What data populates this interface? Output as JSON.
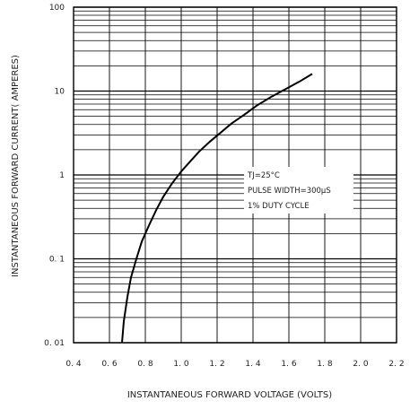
{
  "chart_data": {
    "type": "line",
    "xlabel": "INSTANTANEOUS FORWARD VOLTAGE (VOLTS)",
    "ylabel": "INSTANTANEOUS FORWARD CURRENT( AMPERES)",
    "xlim": [
      0.4,
      2.2
    ],
    "ylim": [
      0.01,
      100
    ],
    "yscale": "log",
    "grid": true,
    "x_ticks": [
      "0. 4",
      "0. 6",
      "0. 8",
      "1. 0",
      "1. 2",
      "1. 4",
      "1. 6",
      "1. 8",
      "2. 0",
      "2. 2"
    ],
    "x_tick_values": [
      0.4,
      0.6,
      0.8,
      1.0,
      1.2,
      1.4,
      1.6,
      1.8,
      2.0,
      2.2
    ],
    "y_ticks": [
      "0. 01",
      "0. 1",
      "1",
      "10",
      "100"
    ],
    "y_tick_values": [
      0.01,
      0.1,
      1,
      10,
      100
    ],
    "series": [
      {
        "x": [
          0.67,
          0.68,
          0.7,
          0.72,
          0.75,
          0.78,
          0.82,
          0.86,
          0.9,
          0.95,
          1.0,
          1.05,
          1.1,
          1.16,
          1.22,
          1.28,
          1.35,
          1.42,
          1.5,
          1.58,
          1.66,
          1.73
        ],
        "y": [
          0.01,
          0.018,
          0.035,
          0.06,
          0.1,
          0.16,
          0.25,
          0.38,
          0.55,
          0.8,
          1.1,
          1.45,
          1.9,
          2.5,
          3.2,
          4.1,
          5.2,
          6.7,
          8.5,
          10.5,
          13.0,
          16.0
        ]
      }
    ],
    "annotations": [
      "TJ=25°C",
      "PULSE WIDTH=300μS",
      "1% DUTY CYCLE"
    ]
  }
}
